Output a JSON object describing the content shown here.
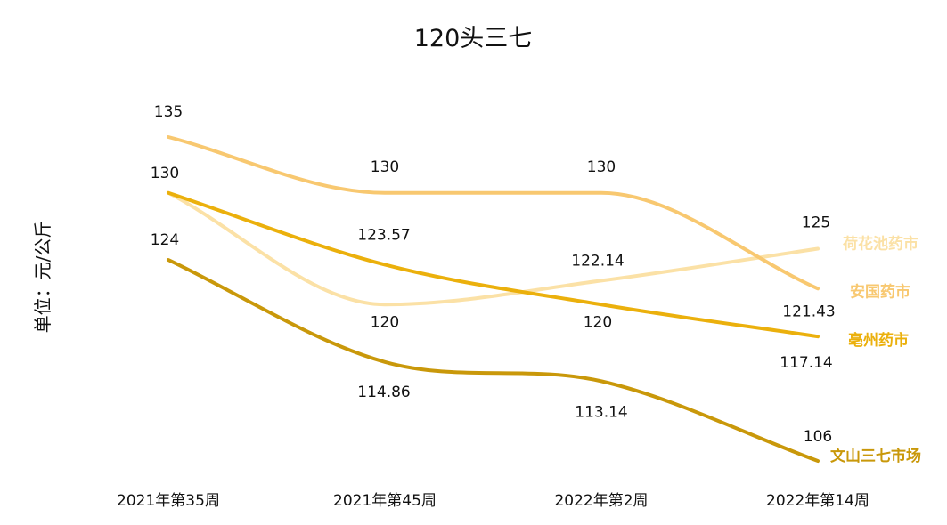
{
  "chart_data": {
    "type": "line",
    "title": "120头三七",
    "xlabel": "",
    "ylabel": "单位：元/公斤",
    "categories": [
      "2021年第35周",
      "2021年第45周",
      "2022年第2周",
      "2022年第14周"
    ],
    "ylim": [
      100,
      140
    ],
    "grid": false,
    "legend": "direct labels at line ends",
    "series": [
      {
        "name": "荷花池药市",
        "color": "#FBE1A6",
        "values": [
          130,
          120,
          122.14,
          125
        ],
        "labels": [
          "",
          "120",
          "122.14",
          "125"
        ]
      },
      {
        "name": "安国药市",
        "color": "#F8C870",
        "values": [
          135,
          130,
          130,
          121.43
        ],
        "labels": [
          "135",
          "130",
          "130",
          "121.43"
        ]
      },
      {
        "name": "亳州药市",
        "color": "#EBB00C",
        "values": [
          130,
          123.57,
          120,
          117.14
        ],
        "labels": [
          "130",
          "123.57",
          "120",
          "117.14"
        ]
      },
      {
        "name": "文山三七市场",
        "color": "#C9980A",
        "values": [
          124,
          114.86,
          113.14,
          106
        ],
        "labels": [
          "124",
          "114.86",
          "113.14",
          "106"
        ]
      }
    ]
  }
}
